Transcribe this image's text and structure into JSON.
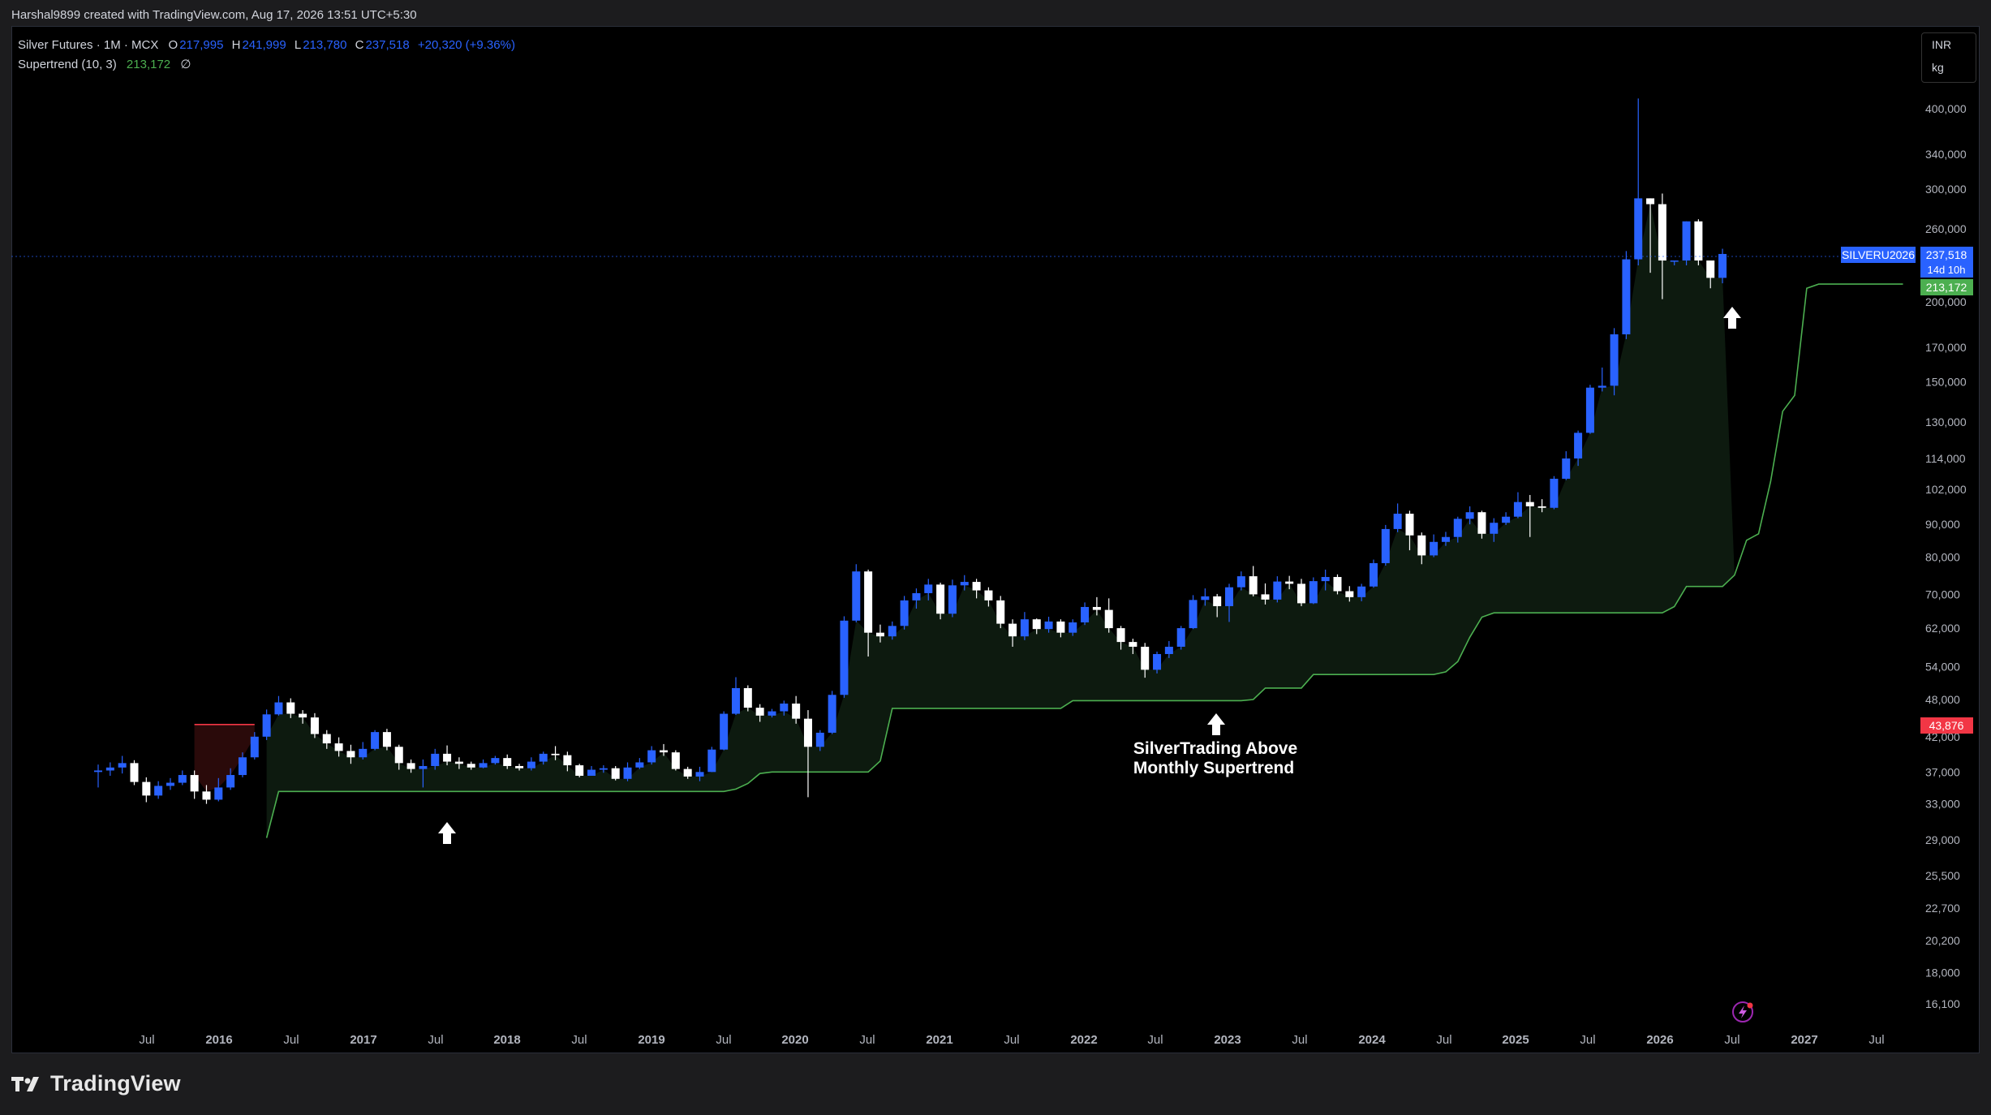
{
  "header": {
    "attribution": "Harshal9899 created with TradingView.com, Aug 17, 2026 13:51 UTC+5:30"
  },
  "legend": {
    "symbol": "Silver Futures · 1M · MCX",
    "o_label": "O",
    "o_value": "217,995",
    "h_label": "H",
    "h_value": "241,999",
    "l_label": "L",
    "l_value": "213,780",
    "c_label": "C",
    "c_value": "237,518",
    "change": "+20,320 (+9.36%)",
    "indicator": "Supertrend (10, 3)",
    "indicator_value": "213,172",
    "indicator_extra": "∅"
  },
  "units": {
    "currency": "INR",
    "unit": "kg"
  },
  "price_tags": {
    "symbol": "SILVERU2026",
    "last": "237,518",
    "countdown": "14d 10h",
    "supertrend": "213,172",
    "stop": "43,876"
  },
  "annotation": {
    "line1": "SilverTrading Above",
    "line2": "Monthly Supertrend"
  },
  "brand": {
    "name": "TradingView"
  },
  "colors": {
    "bull": "#2962ff",
    "bear": "#ffffff",
    "supertrend": "#4caf50",
    "supertrend_down": "#f23645",
    "fill": "#0d1a0f"
  },
  "chart_data": {
    "type": "candlestick",
    "title": "Silver Futures · 1M · MCX",
    "scale": "log",
    "ylim": [
      14800,
      440000
    ],
    "y_ticks": [
      "16,100",
      "18,000",
      "20,200",
      "22,700",
      "25,500",
      "29,000",
      "33,000",
      "37,000",
      "42,000",
      "48,000",
      "54,000",
      "62,000",
      "70,000",
      "80,000",
      "90,000",
      "102,000",
      "114,000",
      "130,000",
      "150,000",
      "170,000",
      "200,000",
      "260,000",
      "300,000",
      "340,000",
      "400,000"
    ],
    "x_ticks": [
      "Jul",
      "2016",
      "Jul",
      "2017",
      "Jul",
      "2018",
      "Jul",
      "2019",
      "Jul",
      "2020",
      "Jul",
      "2021",
      "Jul",
      "2022",
      "Jul",
      "2023",
      "Jul",
      "2024",
      "Jul",
      "2025",
      "Jul",
      "2026",
      "Jul",
      "2027",
      "Jul"
    ],
    "x_start": "2015-04",
    "candles": [
      [
        37000,
        37200,
        35000,
        38000
      ],
      [
        37200,
        37600,
        36500,
        38300
      ],
      [
        37600,
        38200,
        36800,
        39200
      ],
      [
        38200,
        35700,
        35300,
        38600
      ],
      [
        35700,
        34000,
        33200,
        36300
      ],
      [
        34000,
        35200,
        33600,
        35800
      ],
      [
        35200,
        35600,
        34700,
        36200
      ],
      [
        35600,
        36600,
        35300,
        37200
      ],
      [
        36600,
        34500,
        33600,
        37200
      ],
      [
        34500,
        33500,
        33000,
        35300
      ],
      [
        33500,
        35000,
        33300,
        36200
      ],
      [
        35000,
        36600,
        34700,
        37500
      ],
      [
        36600,
        39000,
        36300,
        39700
      ],
      [
        39000,
        42000,
        38700,
        42700
      ],
      [
        42000,
        45500,
        41500,
        46300
      ],
      [
        45500,
        47500,
        45300,
        48600
      ],
      [
        47500,
        45600,
        44900,
        48200
      ],
      [
        45600,
        45000,
        44000,
        46200
      ],
      [
        45000,
        42400,
        41800,
        45700
      ],
      [
        42400,
        41000,
        40200,
        43000
      ],
      [
        41000,
        39900,
        39100,
        41900
      ],
      [
        39900,
        39000,
        38100,
        40800
      ],
      [
        39000,
        40200,
        38700,
        41200
      ],
      [
        40200,
        42700,
        40000,
        43000
      ],
      [
        42700,
        40500,
        40000,
        43200
      ],
      [
        40500,
        38200,
        37300,
        40800
      ],
      [
        38200,
        37400,
        36900,
        38700
      ],
      [
        37400,
        37800,
        35000,
        38700
      ],
      [
        37800,
        39500,
        37300,
        40200
      ],
      [
        39500,
        38400,
        37900,
        40700
      ],
      [
        38400,
        38100,
        37400,
        39000
      ],
      [
        38100,
        37600,
        37300,
        38400
      ],
      [
        37600,
        38200,
        37500,
        38700
      ],
      [
        38200,
        38900,
        38000,
        39200
      ],
      [
        38900,
        37800,
        37400,
        39400
      ],
      [
        37800,
        37500,
        37200,
        38100
      ],
      [
        37500,
        38400,
        37200,
        39000
      ],
      [
        38400,
        39500,
        38000,
        39800
      ],
      [
        39500,
        39300,
        38600,
        40600
      ],
      [
        39300,
        37900,
        37100,
        39800
      ],
      [
        37900,
        36500,
        36300,
        38100
      ],
      [
        36500,
        37300,
        36500,
        37800
      ],
      [
        37300,
        37500,
        36900,
        37900
      ],
      [
        37500,
        36100,
        35900,
        37800
      ],
      [
        36100,
        37600,
        35800,
        38300
      ],
      [
        37600,
        38300,
        37400,
        38900
      ],
      [
        38300,
        40000,
        38000,
        40600
      ],
      [
        40000,
        39700,
        39200,
        40900
      ],
      [
        39700,
        37400,
        37200,
        40000
      ],
      [
        37400,
        36400,
        36100,
        37700
      ],
      [
        36400,
        37000,
        35800,
        37700
      ],
      [
        37000,
        40100,
        37000,
        40500
      ],
      [
        40100,
        45600,
        40000,
        46000
      ],
      [
        45600,
        50000,
        45400,
        52000
      ],
      [
        50000,
        46600,
        46000,
        50500
      ],
      [
        46600,
        45300,
        44300,
        47200
      ],
      [
        45300,
        46000,
        45000,
        46400
      ],
      [
        46000,
        47300,
        45300,
        47800
      ],
      [
        47300,
        44800,
        44000,
        48600
      ],
      [
        44800,
        40500,
        33800,
        46200
      ],
      [
        40500,
        42600,
        39900,
        43000
      ],
      [
        42600,
        48800,
        42400,
        49500
      ],
      [
        48800,
        63700,
        48300,
        64700
      ],
      [
        63700,
        76000,
        63300,
        78000
      ],
      [
        76000,
        61000,
        56000,
        76500
      ],
      [
        61000,
        60200,
        58900,
        62800
      ],
      [
        60200,
        62500,
        59500,
        63500
      ],
      [
        62500,
        68500,
        61700,
        69600
      ],
      [
        68500,
        70300,
        66500,
        71500
      ],
      [
        70300,
        72500,
        68500,
        74000
      ],
      [
        72500,
        65300,
        64000,
        73000
      ],
      [
        65300,
        72300,
        64500,
        73800
      ],
      [
        72300,
        73200,
        71000,
        75000
      ],
      [
        73200,
        71000,
        69000,
        74000
      ],
      [
        71000,
        68500,
        67000,
        71800
      ],
      [
        68500,
        63000,
        62000,
        69600
      ],
      [
        63000,
        60200,
        58000,
        64000
      ],
      [
        60200,
        64000,
        59400,
        65700
      ],
      [
        64000,
        61800,
        60700,
        64200
      ],
      [
        61800,
        63500,
        61000,
        64600
      ],
      [
        63500,
        61000,
        60000,
        64000
      ],
      [
        61000,
        63300,
        60300,
        64000
      ],
      [
        63300,
        66900,
        62700,
        68000
      ],
      [
        66900,
        66200,
        64900,
        69300
      ],
      [
        66200,
        62000,
        61000,
        69000
      ],
      [
        62000,
        59000,
        57400,
        62500
      ],
      [
        59000,
        58000,
        56500,
        59700
      ],
      [
        58000,
        53400,
        51900,
        58800
      ],
      [
        53400,
        56500,
        52700,
        57000
      ],
      [
        56500,
        58000,
        55700,
        59200
      ],
      [
        58000,
        62000,
        57400,
        62500
      ],
      [
        62000,
        68600,
        61800,
        69800
      ],
      [
        68600,
        69500,
        67200,
        71500
      ],
      [
        69500,
        67100,
        64500,
        70100
      ],
      [
        67100,
        71800,
        63400,
        72700
      ],
      [
        71800,
        74700,
        71000,
        76000
      ],
      [
        74700,
        70000,
        69500,
        77500
      ],
      [
        70000,
        68700,
        67500,
        72800
      ],
      [
        68700,
        73300,
        68000,
        74700
      ],
      [
        73300,
        72700,
        71300,
        74800
      ],
      [
        72700,
        67800,
        67100,
        74000
      ],
      [
        67800,
        73400,
        67600,
        74400
      ],
      [
        73400,
        74500,
        71000,
        76500
      ],
      [
        74500,
        70800,
        70000,
        75200
      ],
      [
        70800,
        69300,
        68200,
        72100
      ],
      [
        69300,
        72000,
        68300,
        72700
      ],
      [
        72000,
        78300,
        71700,
        79300
      ],
      [
        78300,
        88500,
        77600,
        89800
      ],
      [
        88500,
        93500,
        87500,
        97000
      ],
      [
        93500,
        86500,
        82000,
        94500
      ],
      [
        86500,
        80500,
        78000,
        87400
      ],
      [
        80500,
        84500,
        80000,
        86800
      ],
      [
        84500,
        86000,
        83300,
        87600
      ],
      [
        86000,
        91800,
        84300,
        92500
      ],
      [
        91800,
        94000,
        90000,
        96000
      ],
      [
        94000,
        87000,
        85500,
        94500
      ],
      [
        87000,
        90500,
        84500,
        92000
      ],
      [
        90500,
        92500,
        89800,
        94000
      ],
      [
        92500,
        97500,
        92000,
        101000
      ],
      [
        97500,
        96000,
        86000,
        100000
      ],
      [
        96000,
        95500,
        94000,
        98500
      ],
      [
        95500,
        106000,
        95000,
        107000
      ],
      [
        106000,
        114000,
        105500,
        117000
      ],
      [
        114000,
        125000,
        111000,
        126000
      ],
      [
        125000,
        147000,
        124500,
        148500
      ],
      [
        147000,
        148000,
        145000,
        158000
      ],
      [
        148000,
        178000,
        143000,
        182000
      ],
      [
        178000,
        233000,
        175000,
        240000
      ],
      [
        233000,
        290000,
        228000,
        415000
      ],
      [
        290000,
        284000,
        222000,
        290000
      ],
      [
        284000,
        232000,
        202000,
        295000
      ],
      [
        232000,
        232000,
        228000,
        232000
      ],
      [
        232000,
        267000,
        228000,
        267000
      ],
      [
        267000,
        232000,
        228000,
        269000
      ],
      [
        232000,
        217995,
        210000,
        232000
      ],
      [
        217995,
        237518,
        213780,
        241999
      ]
    ],
    "supertrend": [
      {
        "from": "2015-12",
        "to": "2016-05",
        "direction": "down",
        "value": 43876
      },
      {
        "from": "2016-06",
        "to": "2026-08",
        "direction": "up",
        "values_note": "step support line"
      }
    ],
    "supertrend_up": [
      29200,
      34500,
      34500,
      34500,
      34500,
      34500,
      34500,
      34500,
      34500,
      34500,
      34500,
      34500,
      34500,
      34500,
      34500,
      34500,
      34500,
      34500,
      34500,
      34500,
      34500,
      34500,
      34500,
      34500,
      34500,
      34500,
      34500,
      34500,
      34500,
      34500,
      34500,
      34500,
      34500,
      34500,
      34500,
      34500,
      34500,
      34500,
      34500,
      34800,
      35500,
      36800,
      37000,
      37000,
      37000,
      37000,
      37000,
      37000,
      37000,
      37000,
      37000,
      38500,
      46500,
      46500,
      46500,
      46500,
      46500,
      46500,
      46500,
      46500,
      46500,
      46500,
      46500,
      46500,
      46500,
      46500,
      46500,
      47800,
      47800,
      47800,
      47800,
      47800,
      47800,
      47800,
      47800,
      47800,
      47800,
      47800,
      47800,
      47800,
      47800,
      47800,
      48000,
      50000,
      50000,
      50000,
      50000,
      52500,
      52500,
      52500,
      52500,
      52500,
      52500,
      52500,
      52500,
      52500,
      52500,
      52500,
      53000,
      55000,
      60000,
      64500,
      65500,
      65500,
      65500,
      65500,
      65500,
      65500,
      65500,
      65500,
      65500,
      65500,
      65500,
      65500,
      65500,
      65500,
      65500,
      67000,
      72000,
      72000,
      72000,
      72000,
      75000,
      85000,
      87000,
      105000,
      135000,
      143000,
      210000,
      213172,
      213172,
      213172,
      213172,
      213172,
      213172,
      213172,
      213172
    ],
    "supertrend_down": [
      43876,
      43876,
      43876,
      43876,
      43876,
      43876
    ]
  }
}
